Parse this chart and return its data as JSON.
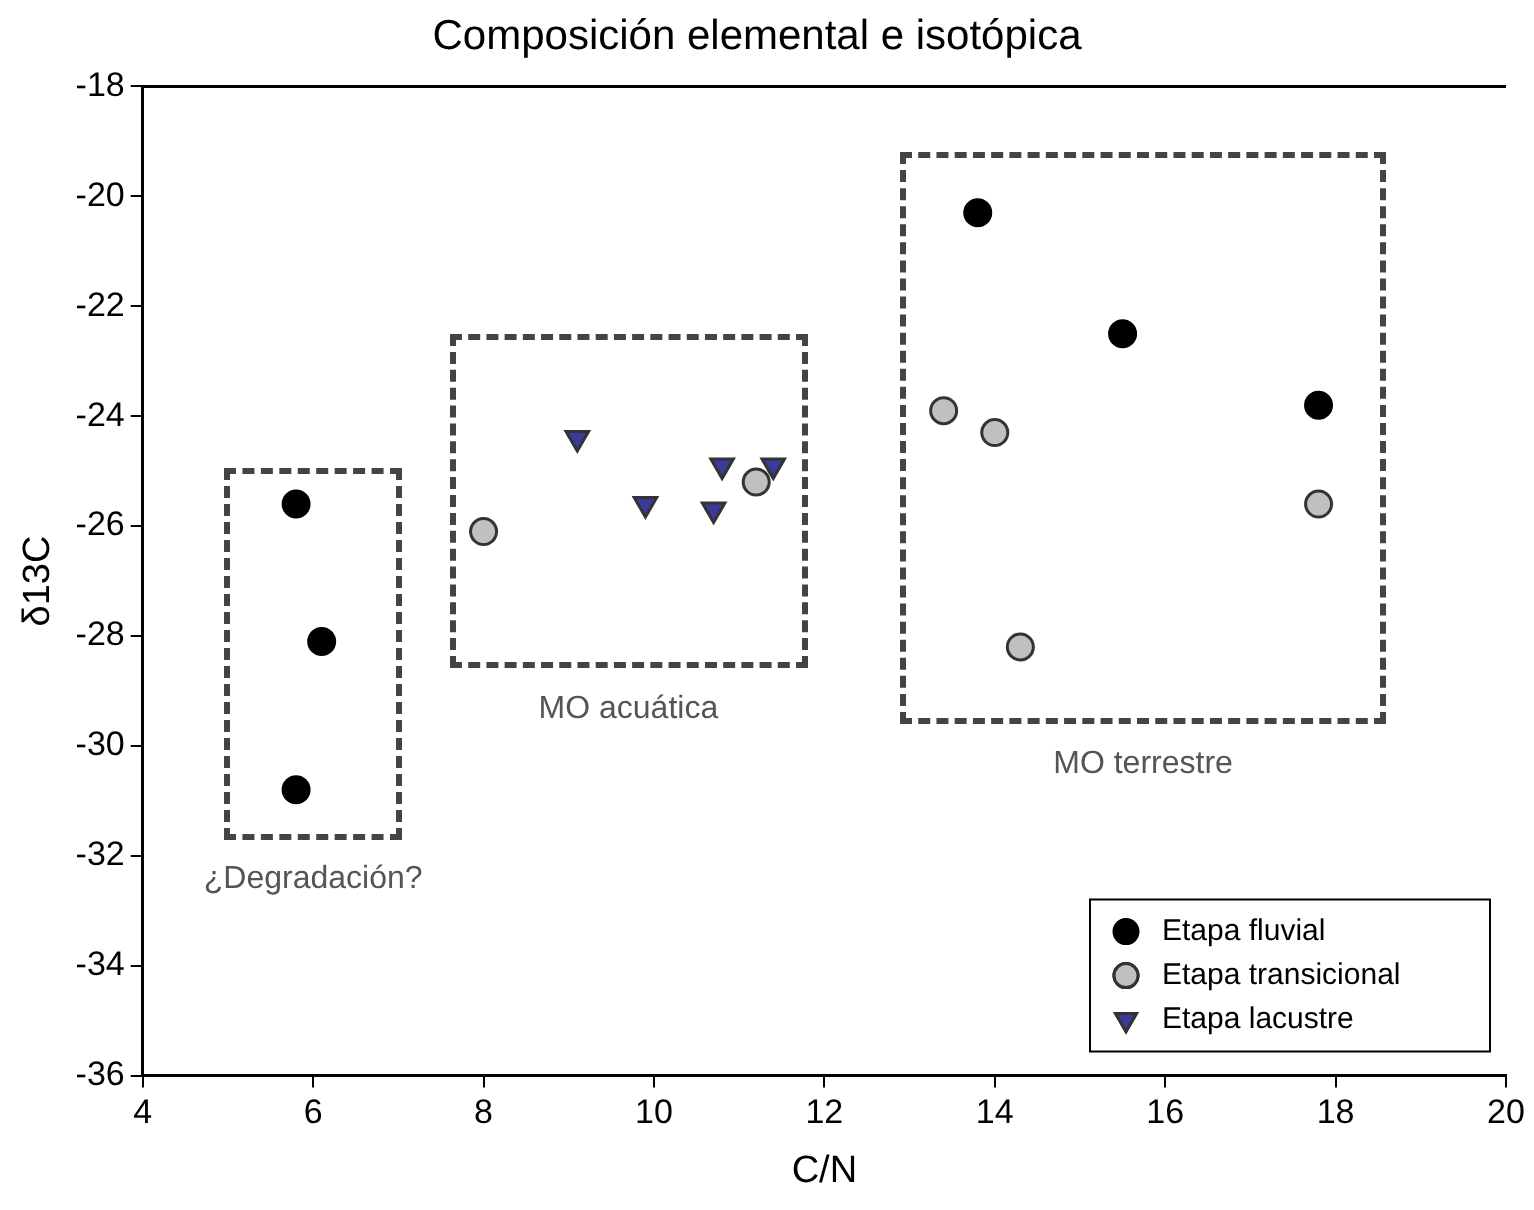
{
  "chart_data": {
    "type": "scatter",
    "title": "Composición elemental e isotópica",
    "xlabel": "C/N",
    "ylabel": "δ13C",
    "xlim": [
      4,
      20
    ],
    "xticks": [
      4,
      6,
      8,
      10,
      12,
      14,
      16,
      18,
      20
    ],
    "ylim": [
      -36,
      -18
    ],
    "yticks": [
      -36,
      -34,
      -32,
      -30,
      -28,
      -26,
      -24,
      -22,
      -20,
      -18
    ],
    "grid": false,
    "legend": "bottom right",
    "series": [
      {
        "name": "Etapa fluvial",
        "color": "#000000",
        "marker": "circle",
        "x": [
          5.8,
          6.1,
          5.8,
          13.8,
          15.5,
          17.8
        ],
        "values": [
          -25.6,
          -28.1,
          -30.8,
          -20.3,
          -22.5,
          -23.8
        ]
      },
      {
        "name": "Etapa transicional",
        "color": "#c0c0c0",
        "marker": "circle",
        "x": [
          8.0,
          11.2,
          13.4,
          14.0,
          14.3,
          17.8
        ],
        "values": [
          -26.1,
          -25.2,
          -23.9,
          -24.3,
          -28.2,
          -25.6
        ]
      },
      {
        "name": "Etapa lacustre",
        "color": "#3a3a9a",
        "marker": "triangle",
        "x": [
          9.1,
          9.9,
          10.7,
          10.8,
          11.4
        ],
        "values": [
          -24.4,
          -25.6,
          -25.7,
          -24.9,
          -24.9
        ]
      }
    ],
    "annotations": [
      "¿Degradación?",
      "MO acuática",
      "MO terrestre"
    ]
  }
}
